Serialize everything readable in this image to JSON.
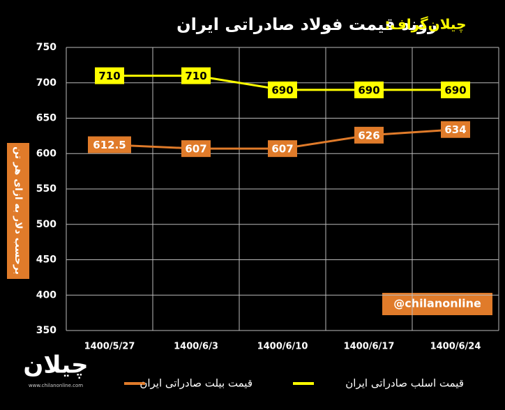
{
  "chart_data": {
    "type": "line",
    "brand": "چیلان‌گراف:",
    "title": "روند قیمت فولاد صادراتی ایران",
    "y_label": "برحسب دلار به ازای هر تن",
    "watermark": "@chilanonline",
    "logo": {
      "name": "چیلان",
      "url": "www.chilanonline.com"
    },
    "categories": [
      "1400/5/27",
      "1400/6/3",
      "1400/6/10",
      "1400/6/17",
      "1400/6/24"
    ],
    "series": [
      {
        "name": "قیمت اسلب صادراتی ایران",
        "color": "#ffff00",
        "label_text_color": "#000000",
        "values": [
          710,
          710,
          690,
          690,
          690
        ]
      },
      {
        "name": "قیمت بیلت صادراتی ایران",
        "color": "#e07b2a",
        "label_text_color": "#ffffff",
        "values": [
          612.5,
          607,
          607,
          626,
          634
        ]
      }
    ],
    "ylim": [
      350,
      750
    ],
    "yticks": [
      350,
      400,
      450,
      500,
      550,
      600,
      650,
      700,
      750
    ],
    "grid": true
  }
}
